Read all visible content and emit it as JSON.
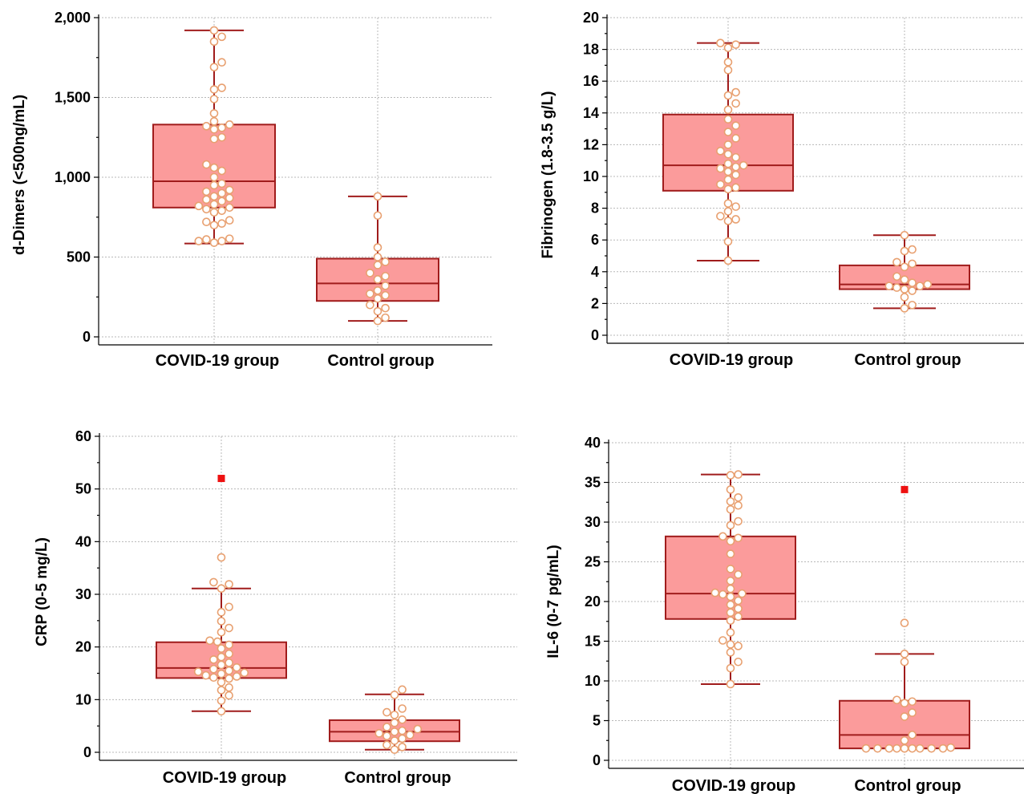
{
  "chart_data": [
    {
      "type": "box",
      "ylabel": "d-Dimers (<500ng/mL)",
      "ylim": [
        0,
        2000
      ],
      "yticks": [
        0,
        500,
        1000,
        1500,
        2000
      ],
      "ytick_labels": [
        "0",
        "500",
        "1,000",
        "1,500",
        "2,000"
      ],
      "grid": true,
      "categories": [
        "COVID-19 group",
        "Control group"
      ],
      "groups": [
        {
          "category": "COVID-19 group",
          "whisker_low": 585,
          "q1": 810,
          "median": 975,
          "q3": 1330,
          "whisker_high": 1920,
          "points": [
            590,
            600,
            610,
            615,
            600,
            700,
            710,
            720,
            730,
            780,
            790,
            800,
            810,
            820,
            830,
            850,
            860,
            870,
            880,
            900,
            910,
            920,
            950,
            960,
            1000,
            1040,
            1060,
            1080,
            1240,
            1250,
            1300,
            1310,
            1320,
            1330,
            1350,
            1400,
            1490,
            1550,
            1560,
            1690,
            1720,
            1850,
            1880,
            1920
          ],
          "outliers": []
        },
        {
          "category": "Control group",
          "whisker_low": 100,
          "q1": 225,
          "median": 335,
          "q3": 490,
          "whisker_high": 880,
          "points": [
            100,
            120,
            160,
            180,
            200,
            240,
            260,
            270,
            290,
            320,
            360,
            380,
            400,
            450,
            470,
            500,
            560,
            760,
            880
          ],
          "outliers": []
        }
      ]
    },
    {
      "type": "box",
      "ylabel": "Fibrinogen (1.8-3.5 g/L)",
      "ylim": [
        0,
        20
      ],
      "yticks": [
        0,
        2,
        4,
        6,
        8,
        10,
        12,
        14,
        16,
        18,
        20
      ],
      "ytick_labels": [
        "0",
        "2",
        "4",
        "6",
        "8",
        "10",
        "12",
        "14",
        "16",
        "18",
        "20"
      ],
      "grid": true,
      "categories": [
        "COVID-19 group",
        "Control group"
      ],
      "groups": [
        {
          "category": "COVID-19 group",
          "whisker_low": 4.7,
          "q1": 9.1,
          "median": 10.7,
          "q3": 13.9,
          "whisker_high": 18.4,
          "points": [
            4.7,
            5.9,
            7.2,
            7.3,
            7.5,
            7.8,
            8.1,
            8.3,
            9.2,
            9.3,
            9.5,
            9.8,
            10.1,
            10.3,
            10.5,
            10.6,
            10.7,
            10.8,
            11.2,
            11.4,
            11.6,
            12.0,
            12.4,
            12.8,
            13.2,
            13.6,
            14.2,
            14.6,
            15.1,
            15.3,
            16.7,
            17.2,
            18.1,
            18.3,
            18.4
          ],
          "outliers": []
        },
        {
          "category": "Control group",
          "whisker_low": 1.7,
          "q1": 2.9,
          "median": 3.2,
          "q3": 4.4,
          "whisker_high": 6.3,
          "points": [
            1.7,
            1.9,
            2.4,
            2.8,
            2.9,
            3.0,
            3.1,
            3.1,
            3.2,
            3.3,
            3.5,
            3.7,
            4.3,
            4.5,
            4.6,
            5.3,
            5.4,
            6.3
          ],
          "outliers": []
        }
      ]
    },
    {
      "type": "box",
      "ylabel": "CRP (0-5 mg/L)",
      "ylim": [
        0,
        60
      ],
      "yticks": [
        0,
        10,
        20,
        30,
        40,
        50,
        60
      ],
      "ytick_labels": [
        "0",
        "10",
        "20",
        "30",
        "40",
        "50",
        "60"
      ],
      "grid": true,
      "categories": [
        "COVID-19 group",
        "Control group"
      ],
      "groups": [
        {
          "category": "COVID-19 group",
          "whisker_low": 7.8,
          "q1": 14.1,
          "median": 16.0,
          "q3": 20.9,
          "whisker_high": 31.1,
          "points": [
            7.8,
            9.8,
            10.8,
            11.8,
            12.3,
            13.3,
            14.0,
            14.2,
            14.4,
            14.6,
            14.9,
            15.1,
            15.3,
            15.5,
            15.8,
            16.1,
            16.6,
            17.0,
            17.6,
            18.1,
            18.7,
            19.7,
            20.4,
            21.0,
            21.2,
            22.8,
            23.6,
            24.9,
            26.6,
            27.6,
            31.1,
            31.9,
            32.3,
            37.0
          ],
          "outliers": [
            52.0
          ]
        },
        {
          "category": "Control group",
          "whisker_low": 0.5,
          "q1": 2.1,
          "median": 3.9,
          "q3": 6.1,
          "whisker_high": 11.0,
          "points": [
            0.5,
            1.0,
            1.4,
            2.2,
            2.6,
            3.1,
            3.3,
            3.6,
            3.9,
            4.1,
            4.4,
            4.8,
            5.6,
            6.2,
            7.1,
            7.6,
            8.3,
            10.9,
            11.9
          ],
          "outliers": []
        }
      ]
    },
    {
      "type": "box",
      "ylabel": "IL-6 (0-7 pg/mL)",
      "ylim": [
        0,
        40
      ],
      "yticks": [
        0,
        5,
        10,
        15,
        20,
        25,
        30,
        35,
        40
      ],
      "ytick_labels": [
        "0",
        "5",
        "10",
        "15",
        "20",
        "25",
        "30",
        "35",
        "40"
      ],
      "grid": true,
      "categories": [
        "COVID-19 group",
        "Control group"
      ],
      "groups": [
        {
          "category": "COVID-19 group",
          "whisker_low": 9.6,
          "q1": 17.8,
          "median": 21.0,
          "q3": 28.2,
          "whisker_high": 36.0,
          "points": [
            9.6,
            11.6,
            12.4,
            13.6,
            14.4,
            14.6,
            15.1,
            16.1,
            17.6,
            18.1,
            18.6,
            19.1,
            19.6,
            20.1,
            20.6,
            20.9,
            21.0,
            21.1,
            21.6,
            22.6,
            23.4,
            24.1,
            26.0,
            27.6,
            28.0,
            28.2,
            29.6,
            30.1,
            31.6,
            32.1,
            32.6,
            33.1,
            34.1,
            35.9,
            36.0
          ],
          "outliers": []
        },
        {
          "category": "Control group",
          "whisker_low": 1.5,
          "q1": 1.5,
          "median": 3.2,
          "q3": 7.5,
          "whisker_high": 13.4,
          "points": [
            1.5,
            1.5,
            1.5,
            1.5,
            1.5,
            1.5,
            1.5,
            1.5,
            1.5,
            1.5,
            1.6,
            2.5,
            3.2,
            5.5,
            6.0,
            7.2,
            7.4,
            7.6,
            12.4,
            13.4,
            17.3
          ],
          "outliers": [
            34.1
          ]
        }
      ]
    }
  ]
}
